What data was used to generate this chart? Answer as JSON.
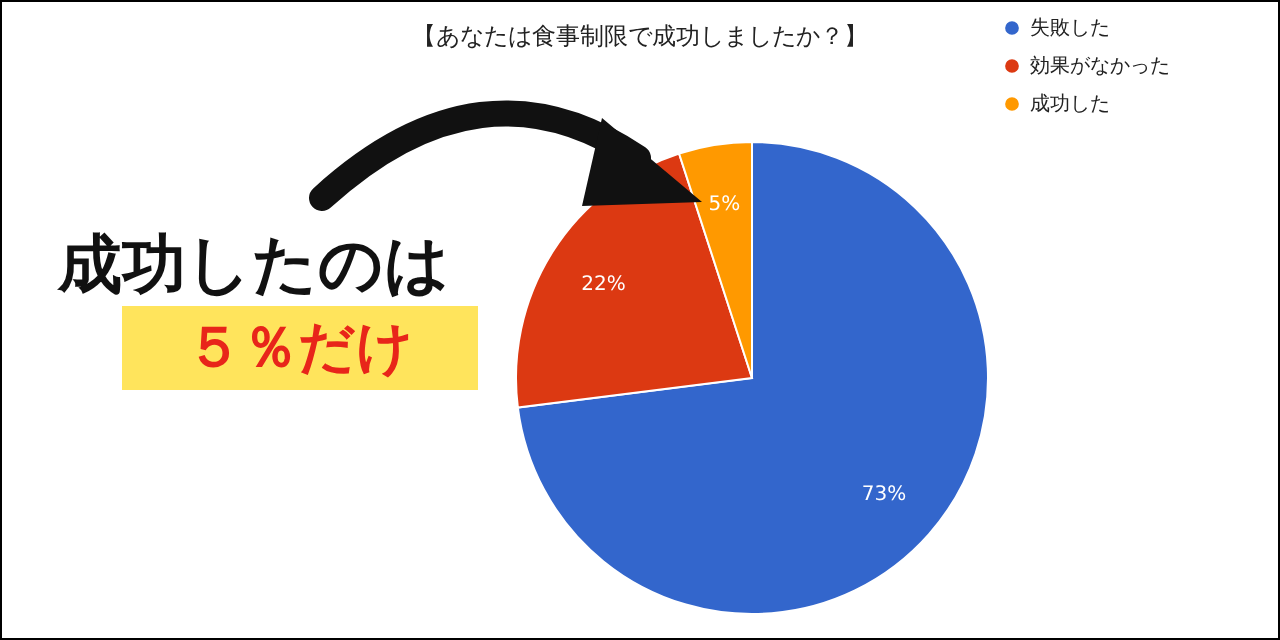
{
  "chart_data": {
    "type": "pie",
    "title": "【あなたは食事制限で成功しましたか？】",
    "categories": [
      "失敗した",
      "効果がなかった",
      "成功した"
    ],
    "values": [
      73,
      22,
      5
    ],
    "colors": [
      "#3366cc",
      "#dc3912",
      "#ff9900"
    ],
    "value_labels": [
      "73%",
      "22%",
      "5%"
    ],
    "legend": "top right",
    "annotations": [
      "成功したのは",
      "５％だけ"
    ]
  }
}
